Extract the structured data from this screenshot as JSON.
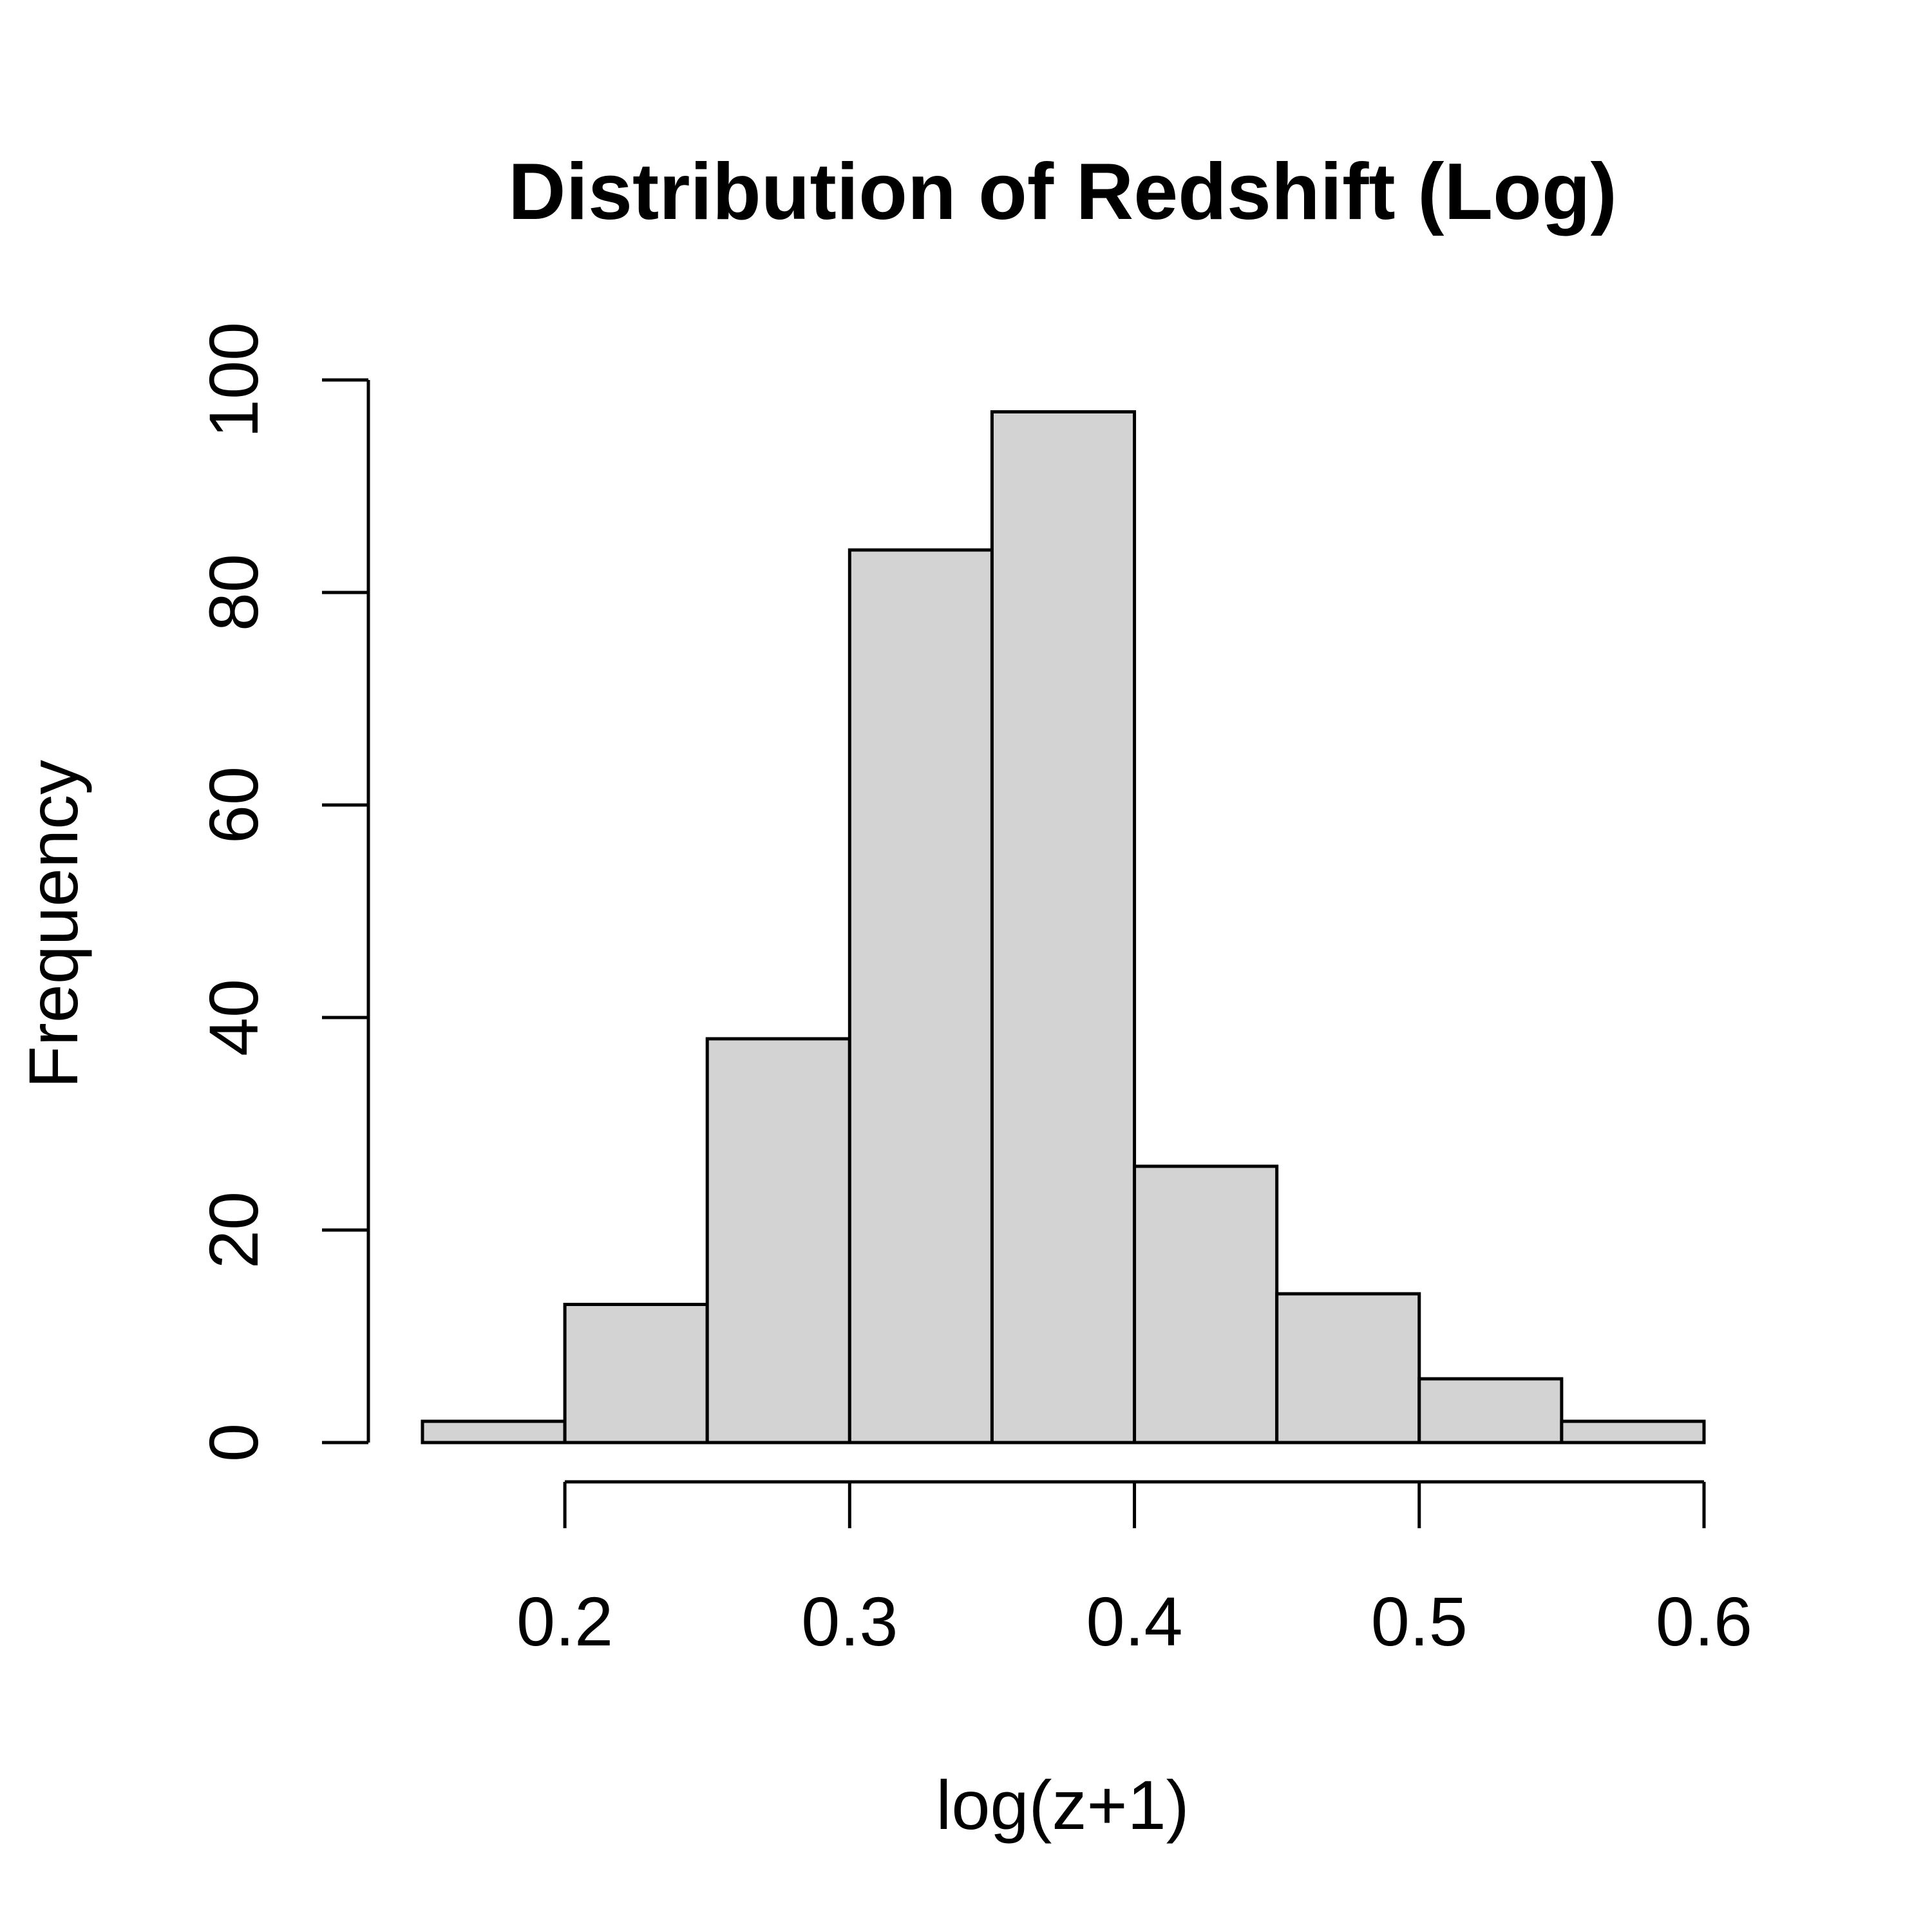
{
  "chart_data": {
    "type": "bar",
    "subtype": "histogram",
    "title": "Distribution of Redshift (Log)",
    "xlabel": "log(z+1)",
    "ylabel": "Frequency",
    "bin_edges": [
      0.15,
      0.2,
      0.25,
      0.3,
      0.35,
      0.4,
      0.45,
      0.5,
      0.55,
      0.6
    ],
    "values": [
      2,
      13,
      38,
      84,
      97,
      26,
      14,
      6,
      2
    ],
    "xlim": [
      0.15,
      0.6
    ],
    "ylim": [
      0,
      100
    ],
    "x_ticks": [
      0.2,
      0.3,
      0.4,
      0.5,
      0.6
    ],
    "x_tick_labels": [
      "0.2",
      "0.3",
      "0.4",
      "0.5",
      "0.6"
    ],
    "y_ticks": [
      0,
      20,
      40,
      60,
      80,
      100
    ],
    "y_tick_labels": [
      "0",
      "20",
      "40",
      "60",
      "80",
      "100"
    ],
    "bar_fill": "#d3d3d3",
    "bar_stroke": "#000000",
    "grid": false,
    "legend": "none"
  }
}
